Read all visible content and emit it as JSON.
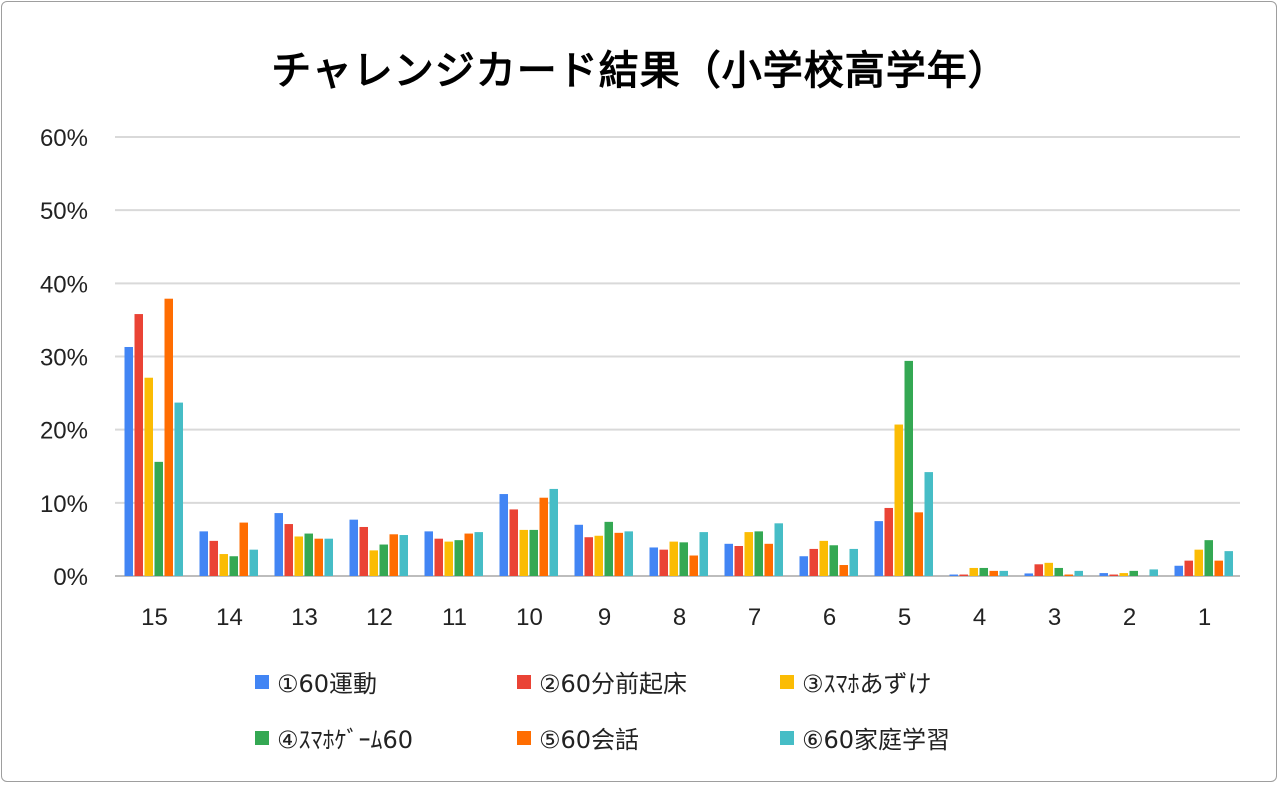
{
  "chart_data": {
    "type": "bar",
    "title": "チャレンジカード結果（小学校高学年）",
    "xlabel": "",
    "ylabel": "",
    "ylim": [
      0,
      60
    ],
    "yticks": [
      "0%",
      "10%",
      "20%",
      "30%",
      "40%",
      "50%",
      "60%"
    ],
    "grid": true,
    "legend_position": "bottom",
    "categories": [
      "15",
      "14",
      "13",
      "12",
      "11",
      "10",
      "9",
      "8",
      "7",
      "6",
      "5",
      "4",
      "3",
      "2",
      "1"
    ],
    "series": [
      {
        "name": "①60運動",
        "color": "#4285F4",
        "values": [
          31.3,
          6.1,
          8.6,
          7.7,
          6.1,
          11.2,
          7.0,
          3.9,
          4.4,
          2.7,
          7.5,
          0.2,
          0.35,
          0.4,
          1.4
        ]
      },
      {
        "name": "②60分前起床",
        "color": "#EA4335",
        "values": [
          35.8,
          4.8,
          7.1,
          6.7,
          5.1,
          9.1,
          5.3,
          3.6,
          4.1,
          3.7,
          9.3,
          0.2,
          1.6,
          0.2,
          2.1
        ]
      },
      {
        "name": "③ｽﾏﾎあずけ",
        "color": "#FBBC04",
        "values": [
          27.1,
          3.0,
          5.4,
          3.5,
          4.7,
          6.3,
          5.5,
          4.7,
          6.0,
          4.8,
          20.7,
          1.1,
          1.8,
          0.4,
          3.6
        ]
      },
      {
        "name": "④ｽﾏﾎｹﾞｰﾑ60",
        "color": "#34A853",
        "values": [
          15.6,
          2.7,
          5.8,
          4.3,
          4.9,
          6.3,
          7.4,
          4.6,
          6.1,
          4.2,
          29.4,
          1.1,
          1.1,
          0.7,
          4.9
        ]
      },
      {
        "name": "⑤60会話",
        "color": "#FF6D01",
        "values": [
          37.9,
          7.3,
          5.1,
          5.7,
          5.8,
          10.7,
          5.9,
          2.8,
          4.4,
          1.5,
          8.7,
          0.7,
          0.2,
          0.0,
          2.1
        ]
      },
      {
        "name": "⑥60家庭学習",
        "color": "#46BDC6",
        "values": [
          23.7,
          3.6,
          5.1,
          5.6,
          6.0,
          11.9,
          6.1,
          6.0,
          7.2,
          3.7,
          14.2,
          0.7,
          0.7,
          0.9,
          3.4
        ]
      }
    ]
  }
}
